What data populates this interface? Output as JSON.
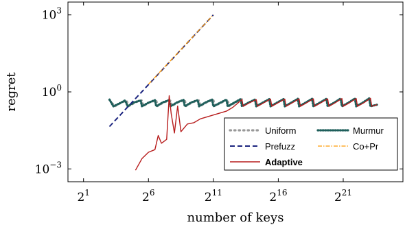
{
  "chart_data": {
    "type": "line",
    "xlabel": "number of keys",
    "ylabel": "regret",
    "xscale": "log2",
    "yscale": "log10",
    "xlim_exp": [
      -0.2,
      25.6
    ],
    "ylim_exp": [
      -3.5,
      3.5
    ],
    "x_ticks": [
      {
        "exp": 1,
        "base": "2",
        "sup": "1"
      },
      {
        "exp": 6,
        "base": "2",
        "sup": "6"
      },
      {
        "exp": 11,
        "base": "2",
        "sup": "11"
      },
      {
        "exp": 16,
        "base": "2",
        "sup": "16"
      },
      {
        "exp": 21,
        "base": "2",
        "sup": "21"
      }
    ],
    "y_ticks": [
      {
        "exp": 3,
        "base": "10",
        "sup": "3"
      },
      {
        "exp": 0,
        "base": "10",
        "sup": "0"
      },
      {
        "exp": -3,
        "base": "10",
        "sup": "−3"
      }
    ],
    "grid": false,
    "legend_position": "bottom-right",
    "series": [
      {
        "name": "Uniform",
        "color": "#999999",
        "style": "dotted",
        "points": [
          [
            3,
            -0.31
          ],
          [
            3.4,
            -0.56
          ],
          [
            3.9,
            -0.42
          ],
          [
            4.3,
            -0.34
          ],
          [
            4.5,
            -0.55
          ],
          [
            5,
            -0.4
          ],
          [
            5.5,
            -0.33
          ],
          [
            5.6,
            -0.55
          ],
          [
            6.1,
            -0.4
          ],
          [
            6.6,
            -0.33
          ],
          [
            6.7,
            -0.55
          ],
          [
            7.2,
            -0.4
          ],
          [
            7.7,
            -0.34
          ],
          [
            7.8,
            -0.55
          ],
          [
            8.3,
            -0.4
          ],
          [
            8.8,
            -0.32
          ],
          [
            8.9,
            -0.55
          ],
          [
            9.4,
            -0.4
          ],
          [
            9.9,
            -0.33
          ],
          [
            10,
            -0.55
          ],
          [
            10.5,
            -0.4
          ],
          [
            11,
            -0.31
          ],
          [
            11.1,
            -0.55
          ],
          [
            11.6,
            -0.42
          ],
          [
            12.1,
            -0.3
          ],
          [
            12.2,
            -0.55
          ],
          [
            12.7,
            -0.42
          ],
          [
            13.2,
            -0.28
          ]
        ]
      },
      {
        "name": "Murmur",
        "color": "#1f5f5b",
        "style": "densely-dotted",
        "points": [
          [
            3,
            -0.3
          ],
          [
            3.3,
            -0.56
          ],
          [
            3.8,
            -0.44
          ],
          [
            4.2,
            -0.33
          ],
          [
            4.4,
            -0.56
          ],
          [
            4.9,
            -0.41
          ],
          [
            5.4,
            -0.33
          ],
          [
            5.5,
            -0.56
          ],
          [
            6,
            -0.42
          ],
          [
            6.5,
            -0.32
          ],
          [
            6.6,
            -0.56
          ],
          [
            7.1,
            -0.41
          ],
          [
            7.6,
            -0.32
          ],
          [
            7.7,
            -0.56
          ],
          [
            8.2,
            -0.41
          ],
          [
            8.7,
            -0.31
          ],
          [
            8.8,
            -0.56
          ],
          [
            9.3,
            -0.41
          ],
          [
            9.8,
            -0.32
          ],
          [
            9.9,
            -0.56
          ],
          [
            10.4,
            -0.41
          ],
          [
            10.9,
            -0.3
          ],
          [
            11,
            -0.56
          ],
          [
            11.5,
            -0.43
          ],
          [
            12,
            -0.3
          ],
          [
            12.1,
            -0.56
          ],
          [
            12.6,
            -0.42
          ],
          [
            13.1,
            -0.28
          ],
          [
            13.2,
            -0.56
          ],
          [
            13.7,
            -0.42
          ],
          [
            14.2,
            -0.3
          ],
          [
            14.3,
            -0.56
          ],
          [
            14.8,
            -0.42
          ],
          [
            15.3,
            -0.28
          ],
          [
            15.4,
            -0.56
          ],
          [
            15.9,
            -0.42
          ],
          [
            16.4,
            -0.28
          ],
          [
            16.5,
            -0.56
          ],
          [
            17,
            -0.42
          ],
          [
            17.5,
            -0.27
          ],
          [
            17.6,
            -0.56
          ],
          [
            18.1,
            -0.42
          ],
          [
            18.6,
            -0.27
          ],
          [
            18.7,
            -0.56
          ],
          [
            19.2,
            -0.42
          ],
          [
            19.7,
            -0.27
          ],
          [
            19.8,
            -0.56
          ],
          [
            20.3,
            -0.42
          ],
          [
            20.8,
            -0.26
          ],
          [
            20.9,
            -0.56
          ],
          [
            21.4,
            -0.42
          ],
          [
            21.9,
            -0.26
          ],
          [
            22,
            -0.56
          ],
          [
            22.5,
            -0.42
          ],
          [
            23,
            -0.25
          ],
          [
            23.1,
            -0.56
          ],
          [
            23.6,
            -0.5
          ]
        ]
      },
      {
        "name": "Prefuzz",
        "color": "#1a237e",
        "style": "dashed",
        "points": [
          [
            3,
            -1.35
          ],
          [
            11,
            3
          ]
        ]
      },
      {
        "name": "Co+Pr",
        "color": "#ff9900",
        "style": "dashdot",
        "points": [
          [
            6,
            0.3
          ],
          [
            11,
            3
          ]
        ]
      },
      {
        "name": "Adaptive",
        "color": "#b71c1c",
        "style": "solid",
        "bold_legend": true,
        "points": [
          [
            5,
            -3.05
          ],
          [
            5.5,
            -2.6
          ],
          [
            6,
            -2.35
          ],
          [
            6.5,
            -2.25
          ],
          [
            6.75,
            -1.7
          ],
          [
            7,
            -2.0
          ],
          [
            7.4,
            -1.85
          ],
          [
            7.6,
            -0.15
          ],
          [
            7.75,
            -0.85
          ],
          [
            8,
            -1.6
          ],
          [
            8.25,
            -0.55
          ],
          [
            8.5,
            -1.55
          ],
          [
            9,
            -1.25
          ],
          [
            9.5,
            -1.2
          ],
          [
            10,
            -1.05
          ],
          [
            11,
            -0.9
          ],
          [
            12,
            -0.75
          ],
          [
            12.5,
            -0.6
          ],
          [
            13.2,
            -0.3
          ],
          [
            13.3,
            -0.56
          ],
          [
            13.8,
            -0.42
          ],
          [
            14.3,
            -0.3
          ],
          [
            14.4,
            -0.56
          ],
          [
            14.9,
            -0.42
          ],
          [
            15.4,
            -0.28
          ],
          [
            15.5,
            -0.56
          ],
          [
            16,
            -0.42
          ],
          [
            16.5,
            -0.28
          ],
          [
            16.6,
            -0.56
          ],
          [
            17.1,
            -0.42
          ],
          [
            17.6,
            -0.27
          ],
          [
            17.7,
            -0.56
          ],
          [
            18.2,
            -0.42
          ],
          [
            18.7,
            -0.27
          ],
          [
            18.8,
            -0.56
          ],
          [
            19.3,
            -0.42
          ],
          [
            19.8,
            -0.27
          ],
          [
            19.9,
            -0.56
          ],
          [
            20.4,
            -0.42
          ],
          [
            20.9,
            -0.26
          ],
          [
            21,
            -0.56
          ],
          [
            21.5,
            -0.42
          ],
          [
            22,
            -0.26
          ],
          [
            22.1,
            -0.56
          ],
          [
            22.6,
            -0.42
          ],
          [
            23.1,
            -0.25
          ],
          [
            23.2,
            -0.56
          ],
          [
            23.6,
            -0.5
          ]
        ]
      }
    ]
  }
}
